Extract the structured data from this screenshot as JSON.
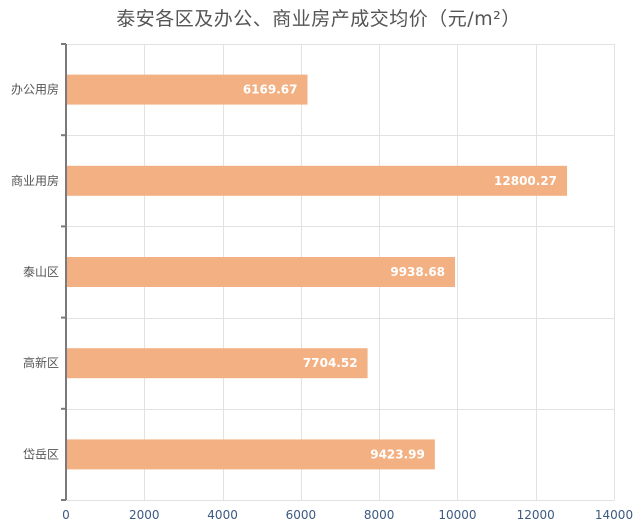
{
  "chart_data": {
    "type": "bar",
    "orientation": "horizontal",
    "title": "泰安各区及办公、商业房产成交均价（元/m²）",
    "xlabel": "",
    "ylabel": "",
    "categories": [
      "办公用房",
      "商业用房",
      "泰山区",
      "高新区",
      "岱岳区"
    ],
    "series": [
      {
        "values": [
          6169.67,
          12800.27,
          9938.68,
          7704.52,
          9423.99
        ],
        "data_labels": [
          "6169.67",
          "12800.27",
          "9938.68",
          "7704.52",
          "9423.99"
        ]
      }
    ],
    "xlim": [
      0,
      14000
    ],
    "x_ticks": [
      0,
      2000,
      4000,
      6000,
      8000,
      10000,
      12000,
      14000
    ],
    "x_tick_labels": [
      "0",
      "2000",
      "4000",
      "6000",
      "8000",
      "10000",
      "12000",
      "14000"
    ],
    "grid": true,
    "legend": "none",
    "colors": {
      "bar": "#f3b183",
      "data_label": "#ffffff",
      "grid": "#e2e2e2",
      "axis": "#7a7a7a",
      "tick_label": "#3d5a80",
      "category_label": "#555555",
      "title": "#555555"
    }
  }
}
